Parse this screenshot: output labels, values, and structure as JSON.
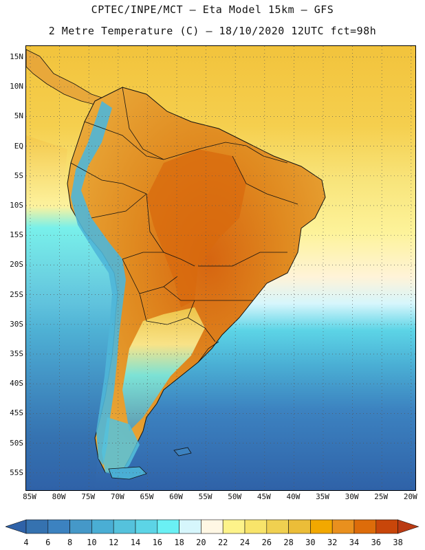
{
  "header": {
    "line1": "CPTEC/INPE/MCT –  Eta Model 15km – GFS",
    "line2": "2 Metre Temperature (C) – 18/10/2020 12UTC fct=98h"
  },
  "lat_labels": [
    "15N",
    "10N",
    "5N",
    "EQ",
    "5S",
    "10S",
    "15S",
    "20S",
    "25S",
    "30S",
    "35S",
    "40S",
    "45S",
    "50S",
    "55S"
  ],
  "lon_labels": [
    "85W",
    "80W",
    "75W",
    "70W",
    "65W",
    "60W",
    "55W",
    "50W",
    "45W",
    "40W",
    "35W",
    "30W",
    "25W",
    "20W"
  ],
  "colorbar": {
    "labels": [
      "4",
      "6",
      "8",
      "10",
      "12",
      "14",
      "16",
      "18",
      "20",
      "22",
      "24",
      "26",
      "28",
      "30",
      "32",
      "34",
      "36",
      "38"
    ],
    "colors": [
      "#3572b0",
      "#3c82c0",
      "#4598c8",
      "#4aaed4",
      "#55c2dc",
      "#5cd4e6",
      "#6af0f4",
      "#d6f6fc",
      "#fff7e4",
      "#fdf38a",
      "#f8e46a",
      "#f0d050",
      "#ebbd38",
      "#f2a800",
      "#e9901e",
      "#dd6c0a",
      "#c8460a"
    ],
    "low_color": "#2f62a8",
    "high_color": "#ba3a12"
  },
  "colors": {
    "warm_land": "#e5a031",
    "hot_core": "#dc7410",
    "ocean_tropical": "#f4c84a",
    "ocean_cold": "#2f62a8",
    "andes_cold": "#55c2dc"
  }
}
